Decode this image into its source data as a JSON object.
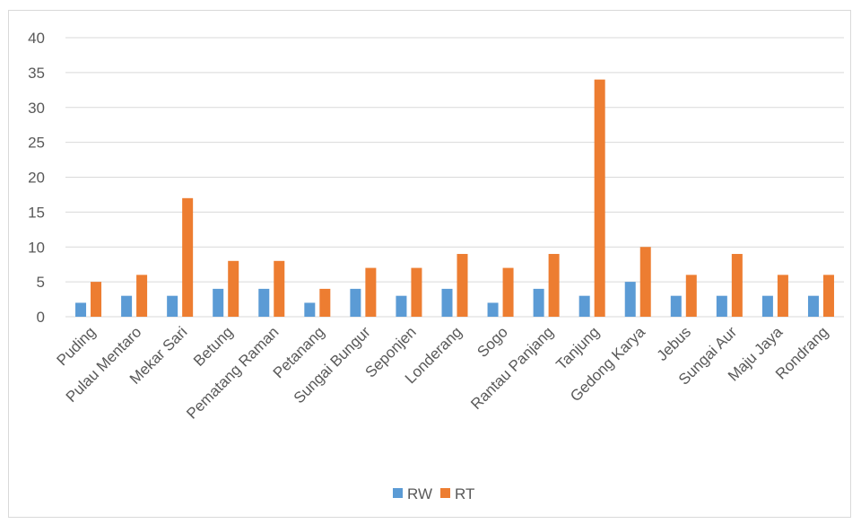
{
  "chart_data": {
    "type": "bar",
    "categories": [
      "Puding",
      "Pulau Mentaro",
      "Mekar Sari",
      "Betung",
      "Pematang Raman",
      "Petanang",
      "Sungai Bungur",
      "Seponjen",
      "Londerang",
      "Sogo",
      "Rantau Panjang",
      "Tanjung",
      "Gedong Karya",
      "Jebus",
      "Sungai Aur",
      "Maju Jaya",
      "Rondrang"
    ],
    "series": [
      {
        "name": "RW",
        "color": "#5b9bd5",
        "values": [
          2,
          3,
          3,
          4,
          4,
          2,
          4,
          3,
          4,
          2,
          4,
          3,
          5,
          3,
          3,
          3,
          3
        ]
      },
      {
        "name": "RT",
        "color": "#ed7d31",
        "values": [
          5,
          6,
          17,
          8,
          8,
          4,
          7,
          7,
          9,
          7,
          9,
          34,
          10,
          6,
          9,
          6,
          6
        ]
      }
    ],
    "ylim": [
      0,
      40
    ],
    "yticks": [
      0,
      5,
      10,
      15,
      20,
      25,
      30,
      35,
      40
    ],
    "grid": true,
    "gridColor": "#d9d9d9",
    "legend": "bottom"
  }
}
